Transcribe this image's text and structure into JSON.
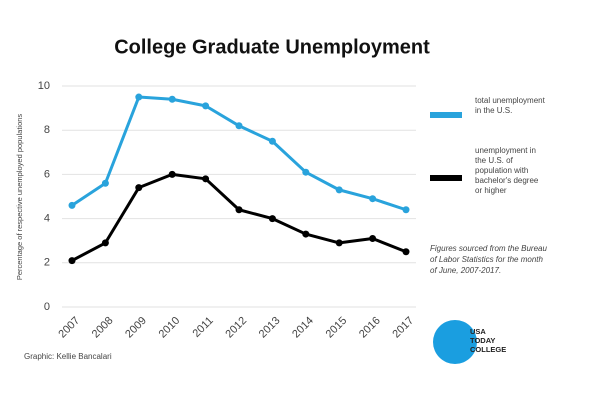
{
  "chart_data": {
    "type": "line",
    "title": "College Graduate Unemployment",
    "y_label": "Percentage of respective unemployed populations",
    "categories": [
      "2007",
      "2008",
      "2009",
      "2010",
      "2011",
      "2012",
      "2013",
      "2014",
      "2015",
      "2016",
      "2017"
    ],
    "series": [
      {
        "name": "total unemployment in the U.S.",
        "color": "#29a3dc",
        "values": [
          4.6,
          5.6,
          9.5,
          9.4,
          9.1,
          8.2,
          7.5,
          6.1,
          5.3,
          4.9,
          4.4
        ]
      },
      {
        "name": "unemployment in the U.S. of population with bachelor's degree or higher",
        "color": "#000000",
        "values": [
          2.1,
          2.9,
          5.4,
          6.0,
          5.8,
          4.4,
          4.0,
          3.3,
          2.9,
          3.1,
          2.5
        ]
      }
    ],
    "ylim": [
      0,
      10
    ],
    "yticks": [
      0,
      2,
      4,
      6,
      8,
      10
    ],
    "grid": true,
    "note": "Figures sourced from the Bureau of Labor Statistics for the month of June, 2007-2017.",
    "credit": "Graphic: Kellie Bancalari",
    "logo": [
      "USA",
      "TODAY",
      "COLLEGE"
    ]
  }
}
